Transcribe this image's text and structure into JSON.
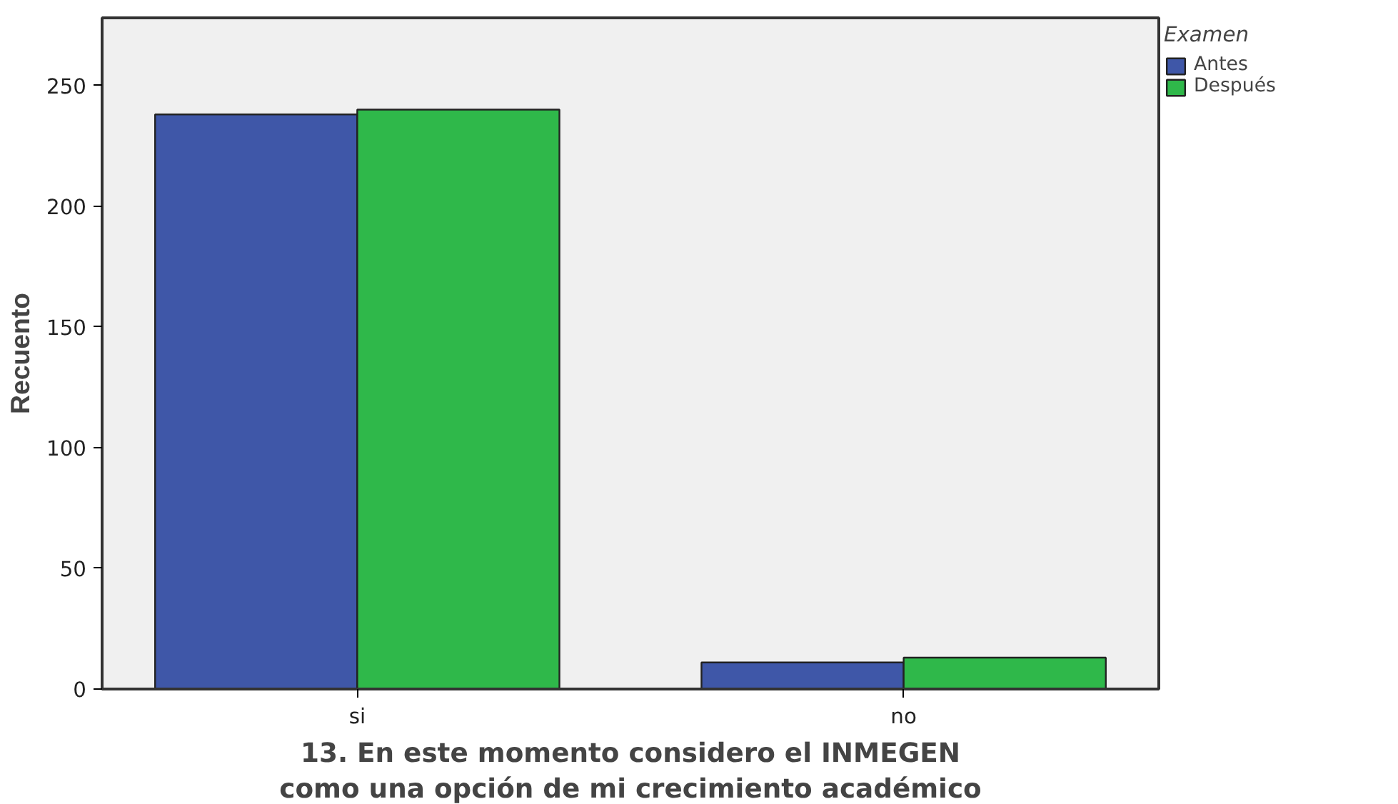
{
  "chart_data": {
    "type": "bar",
    "categories": [
      "si",
      "no"
    ],
    "series": [
      {
        "name": "Antes",
        "color": "#3f57a8",
        "values": [
          238,
          11
        ]
      },
      {
        "name": "Después",
        "color": "#2fb84a",
        "values": [
          240,
          13
        ]
      }
    ],
    "xlabel": "13. En este momento considero el INMEGEN\ncomo una opción de mi crecimiento académico",
    "ylabel": "Recuento",
    "legend_title": "Examen",
    "legend": "right",
    "ylim": [
      0,
      278
    ],
    "yticks": [
      0,
      50,
      100,
      150,
      200,
      250
    ],
    "grid": false
  }
}
